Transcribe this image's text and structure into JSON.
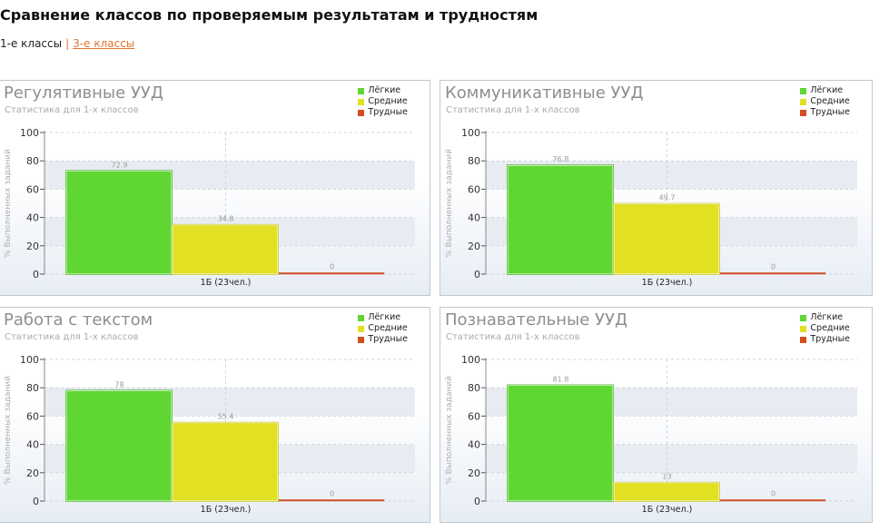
{
  "page": {
    "title": "Сравнение классов по проверяемым результатам и трудностям",
    "nav": {
      "current": "1-е классы",
      "separator": "|",
      "link": "3-е классы"
    }
  },
  "colors": {
    "easy": "#5fd632",
    "medium": "#e1e022",
    "hard": "#d24d22"
  },
  "chart_data": [
    {
      "type": "bar",
      "title": "Регулятивные УУД",
      "subtitle": "Статистика для 1-х классов",
      "ylabel": "% Выполненных заданий",
      "ylim": [
        0,
        100
      ],
      "yticks": [
        "0",
        "20",
        "40",
        "60",
        "80",
        "100"
      ],
      "categories": [
        "1Б (23чел.)"
      ],
      "series": [
        {
          "name": "Лёгкие",
          "values": [
            72.9
          ],
          "label": "72.9"
        },
        {
          "name": "Средние",
          "values": [
            34.8
          ],
          "label": "34.8"
        },
        {
          "name": "Трудные",
          "values": [
            0
          ],
          "label": "0"
        }
      ],
      "legend": "top-right",
      "grid": true
    },
    {
      "type": "bar",
      "title": "Коммуникативные УУД",
      "subtitle": "Статистика для 1-х классов",
      "ylabel": "% Выполненных заданий",
      "ylim": [
        0,
        100
      ],
      "yticks": [
        "0",
        "20",
        "40",
        "60",
        "80",
        "100"
      ],
      "categories": [
        "1Б (23чел.)"
      ],
      "series": [
        {
          "name": "Лёгкие",
          "values": [
            76.8
          ],
          "label": "76.8"
        },
        {
          "name": "Средние",
          "values": [
            49.7
          ],
          "label": "49.7"
        },
        {
          "name": "Трудные",
          "values": [
            0
          ],
          "label": "0"
        }
      ],
      "legend": "top-right",
      "grid": true
    },
    {
      "type": "bar",
      "title": "Работа с текстом",
      "subtitle": "Статистика для 1-х классов",
      "ylabel": "% Выполненных заданий",
      "ylim": [
        0,
        100
      ],
      "yticks": [
        "0",
        "20",
        "40",
        "60",
        "80",
        "100"
      ],
      "categories": [
        "1Б (23чел.)"
      ],
      "series": [
        {
          "name": "Лёгкие",
          "values": [
            78
          ],
          "label": "78"
        },
        {
          "name": "Средние",
          "values": [
            55.4
          ],
          "label": "55.4"
        },
        {
          "name": "Трудные",
          "values": [
            0
          ],
          "label": "0"
        }
      ],
      "legend": "top-right",
      "grid": true
    },
    {
      "type": "bar",
      "title": "Познавательные УУД",
      "subtitle": "Статистика для 1-х классов",
      "ylabel": "% Выполненных заданий",
      "ylim": [
        0,
        100
      ],
      "yticks": [
        "0",
        "20",
        "40",
        "60",
        "80",
        "100"
      ],
      "categories": [
        "1Б (23чел.)"
      ],
      "series": [
        {
          "name": "Лёгкие",
          "values": [
            81.8
          ],
          "label": "81.8"
        },
        {
          "name": "Средние",
          "values": [
            13
          ],
          "label": "13"
        },
        {
          "name": "Трудные",
          "values": [
            0
          ],
          "label": "0"
        }
      ],
      "legend": "top-right",
      "grid": true
    }
  ]
}
